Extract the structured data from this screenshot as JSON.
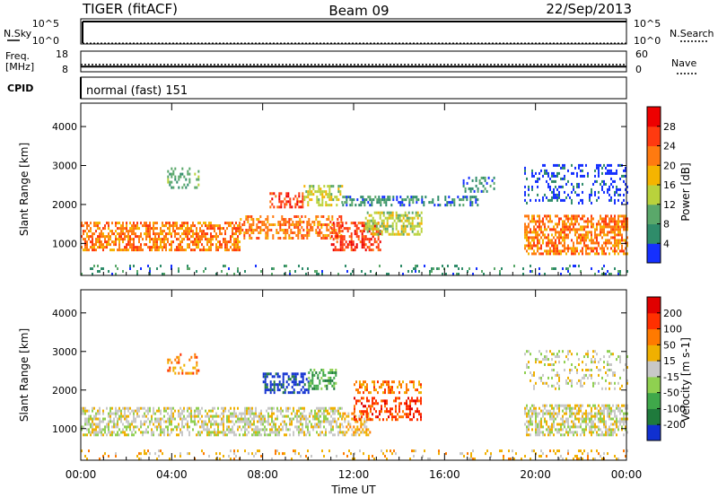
{
  "header": {
    "station": "TIGER (fitACF)",
    "beam": "Beam 09",
    "date": "22/Sep/2013"
  },
  "noise_panel": {
    "left_label": "N.Sky",
    "right_label": "N.Search",
    "left_ticks": [
      "10^5",
      "10^0"
    ],
    "right_ticks": [
      "10^5",
      "10^0"
    ]
  },
  "freq_panel": {
    "left_label_1": "Freq.",
    "left_label_2": "[MHz]",
    "right_label": "Nave",
    "left_ticks": [
      "18",
      "8"
    ],
    "right_ticks": [
      "60",
      "0"
    ],
    "freq_value_mhz": 10.5,
    "nave_value": 21
  },
  "cpid_panel": {
    "label": "CPID",
    "mode_text": "normal (fast) 151"
  },
  "x_axis": {
    "label": "Time UT",
    "tick_labels": [
      "00:00",
      "04:00",
      "08:00",
      "12:00",
      "16:00",
      "20:00",
      "00:00"
    ],
    "range_hours": [
      0,
      24
    ]
  },
  "chart_data": [
    {
      "type": "heatmap",
      "quantity": "Power",
      "ylabel": "Slant Range [km]",
      "ylim": [
        180,
        4600
      ],
      "y_ticks": [
        "1000",
        "2000",
        "3000",
        "4000"
      ],
      "colorbar": {
        "title": "Power [dB]",
        "tick_labels": [
          "4",
          "8",
          "12",
          "16",
          "20",
          "24",
          "28"
        ],
        "colors": [
          "#1530ff",
          "#2f8c6a",
          "#5aa86a",
          "#b9d23c",
          "#f5b400",
          "#ff7a10",
          "#ff3a10",
          "#ee0000"
        ]
      },
      "regions": [
        {
          "t0": 0.0,
          "t1": 7.0,
          "r0": 800,
          "r1": 1500,
          "level": 5,
          "scatter": 0.6
        },
        {
          "t0": 7.0,
          "t1": 11.5,
          "r0": 1100,
          "r1": 1700,
          "level": 5,
          "scatter": 0.5
        },
        {
          "t0": 8.3,
          "t1": 9.8,
          "r0": 1900,
          "r1": 2300,
          "level": 6,
          "scatter": 0.5
        },
        {
          "t0": 9.8,
          "t1": 11.5,
          "r0": 1950,
          "r1": 2450,
          "level": 3,
          "scatter": 0.5
        },
        {
          "t0": 11.0,
          "t1": 13.2,
          "r0": 800,
          "r1": 1500,
          "level": 6,
          "scatter": 0.5
        },
        {
          "t0": 12.5,
          "t1": 15.0,
          "r0": 1200,
          "r1": 1800,
          "level": 3,
          "scatter": 0.6
        },
        {
          "t0": 11.5,
          "t1": 17.5,
          "r0": 1950,
          "r1": 2200,
          "level": 1,
          "scatter": 0.4
        },
        {
          "t0": 16.8,
          "t1": 18.2,
          "r0": 2300,
          "r1": 2700,
          "level": 1,
          "scatter": 0.3
        },
        {
          "t0": 19.5,
          "t1": 24.0,
          "r0": 700,
          "r1": 1700,
          "level": 5,
          "scatter": 0.6
        },
        {
          "t0": 19.5,
          "t1": 24.0,
          "r0": 2000,
          "r1": 3000,
          "level": 0,
          "scatter": 0.25
        },
        {
          "t0": 3.8,
          "t1": 5.2,
          "r0": 2400,
          "r1": 2900,
          "level": 2,
          "scatter": 0.3
        },
        {
          "t0": 0.0,
          "t1": 24.0,
          "r0": 180,
          "r1": 420,
          "level": 1,
          "scatter": 0.15
        }
      ]
    },
    {
      "type": "heatmap",
      "quantity": "Velocity",
      "ylabel": "Slant Range [km]",
      "ylim": [
        180,
        4600
      ],
      "y_ticks": [
        "1000",
        "2000",
        "3000",
        "4000"
      ],
      "colorbar": {
        "title": "Velocity [m s-1]",
        "tick_labels": [
          "200",
          "100",
          "50",
          "15",
          "-15",
          "-50",
          "-100",
          "-200"
        ],
        "colors": [
          "#1030d0",
          "#1f7a3c",
          "#3fa84a",
          "#8fd050",
          "#c8c8c8",
          "#f0b000",
          "#ff7a00",
          "#ff3000",
          "#e00000"
        ]
      },
      "regions": [
        {
          "t0": 0.0,
          "t1": 11.5,
          "r0": 800,
          "r1": 1500,
          "level": 4,
          "scatter": 0.55
        },
        {
          "t0": 8.0,
          "t1": 10.0,
          "r0": 1900,
          "r1": 2400,
          "level": 0,
          "scatter": 0.5
        },
        {
          "t0": 10.0,
          "t1": 11.2,
          "r0": 2000,
          "r1": 2500,
          "level": 2,
          "scatter": 0.5
        },
        {
          "t0": 11.5,
          "t1": 12.7,
          "r0": 800,
          "r1": 1400,
          "level": 5,
          "scatter": 0.5
        },
        {
          "t0": 12.0,
          "t1": 15.0,
          "r0": 1200,
          "r1": 1800,
          "level": 7,
          "scatter": 0.45
        },
        {
          "t0": 12.0,
          "t1": 15.0,
          "r0": 1900,
          "r1": 2200,
          "level": 6,
          "scatter": 0.4
        },
        {
          "t0": 19.5,
          "t1": 24.0,
          "r0": 800,
          "r1": 1600,
          "level": 4,
          "scatter": 0.6
        },
        {
          "t0": 19.5,
          "t1": 24.0,
          "r0": 2000,
          "r1": 3000,
          "level": 4,
          "scatter": 0.2
        },
        {
          "t0": 3.8,
          "t1": 5.2,
          "r0": 2400,
          "r1": 2900,
          "level": 6,
          "scatter": 0.3
        },
        {
          "t0": 0.0,
          "t1": 24.0,
          "r0": 180,
          "r1": 420,
          "level": 5,
          "scatter": 0.15
        }
      ]
    }
  ]
}
